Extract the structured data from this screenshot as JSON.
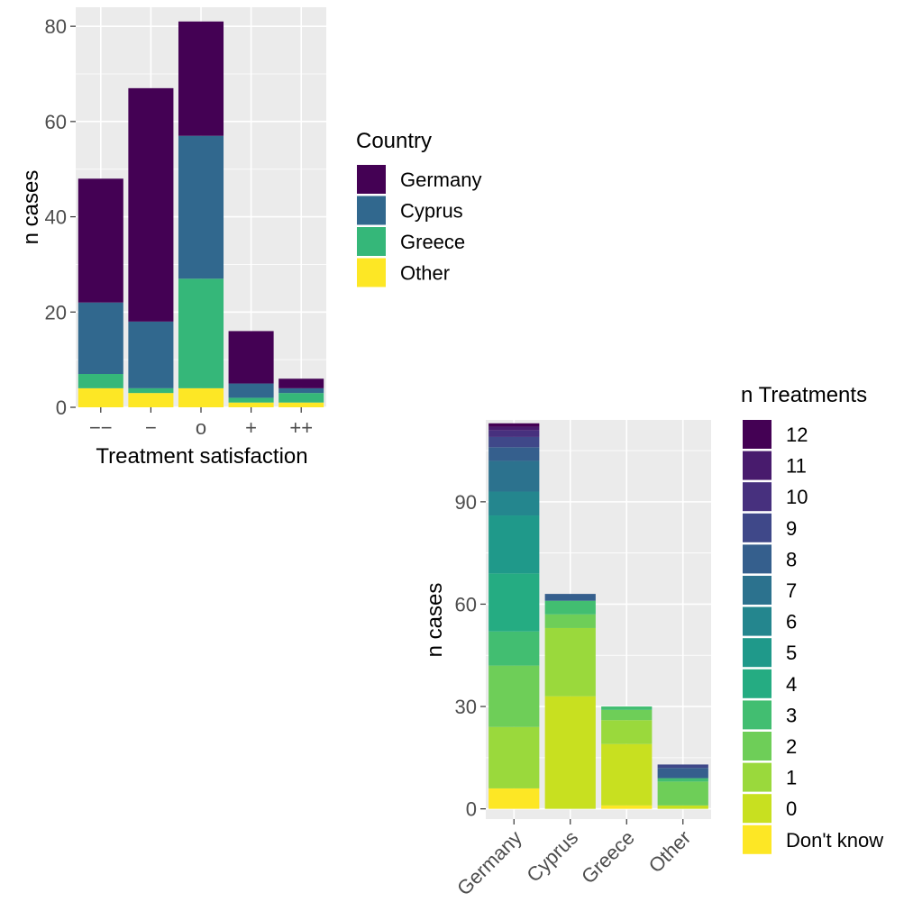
{
  "chart_data": [
    {
      "type": "bar",
      "stacked": true,
      "xlabel": "Treatment satisfaction",
      "ylabel": "n cases",
      "categories": [
        "−−",
        "−",
        "o",
        "+",
        "++"
      ],
      "ylim": [
        0,
        84
      ],
      "yticks": [
        0,
        20,
        40,
        60,
        80
      ],
      "grid": true,
      "legend": {
        "title": "Country",
        "position": "right"
      },
      "series": [
        {
          "name": "Other",
          "color": "#FDE725",
          "values": [
            4,
            3,
            4,
            1,
            1
          ]
        },
        {
          "name": "Greece",
          "color": "#35B779",
          "values": [
            3,
            1,
            23,
            1,
            2
          ]
        },
        {
          "name": "Cyprus",
          "color": "#31688E",
          "values": [
            15,
            14,
            30,
            3,
            1
          ]
        },
        {
          "name": "Germany",
          "color": "#440154",
          "values": [
            26,
            49,
            24,
            11,
            2
          ]
        }
      ]
    },
    {
      "type": "bar",
      "stacked": true,
      "xlabel": "",
      "ylabel": "n cases",
      "categories": [
        "Germany",
        "Cyprus",
        "Greece",
        "Other"
      ],
      "ylim": [
        -3,
        114
      ],
      "yticks": [
        0,
        30,
        60,
        90
      ],
      "grid": true,
      "legend": {
        "title": "n Treatments",
        "position": "right"
      },
      "series": [
        {
          "name": "Don't know",
          "color": "#FDE725",
          "values": [
            6,
            0,
            1,
            0
          ]
        },
        {
          "name": "0",
          "color": "#C8E020",
          "values": [
            0,
            33,
            18,
            1
          ]
        },
        {
          "name": "1",
          "color": "#9AD93C",
          "values": [
            18,
            20,
            7,
            0
          ]
        },
        {
          "name": "2",
          "color": "#6ECE58",
          "values": [
            18,
            4,
            3,
            7
          ]
        },
        {
          "name": "3",
          "color": "#42BE71",
          "values": [
            10,
            4,
            1,
            1
          ]
        },
        {
          "name": "4",
          "color": "#25AC82",
          "values": [
            17,
            0,
            0,
            0
          ]
        },
        {
          "name": "5",
          "color": "#1F998A",
          "values": [
            17,
            0,
            0,
            0
          ]
        },
        {
          "name": "6",
          "color": "#24868E",
          "values": [
            7,
            0,
            0,
            0
          ]
        },
        {
          "name": "7",
          "color": "#2C728E",
          "values": [
            9,
            0,
            0,
            0
          ]
        },
        {
          "name": "8",
          "color": "#355F8D",
          "values": [
            4,
            2,
            0,
            3
          ]
        },
        {
          "name": "9",
          "color": "#3F4889",
          "values": [
            3,
            0,
            0,
            1
          ]
        },
        {
          "name": "10",
          "color": "#47307E",
          "values": [
            2,
            0,
            0,
            0
          ]
        },
        {
          "name": "11",
          "color": "#481B6D",
          "values": [
            1,
            0,
            0,
            0
          ]
        },
        {
          "name": "12",
          "color": "#440154",
          "values": [
            1,
            0,
            0,
            0
          ]
        }
      ]
    }
  ]
}
